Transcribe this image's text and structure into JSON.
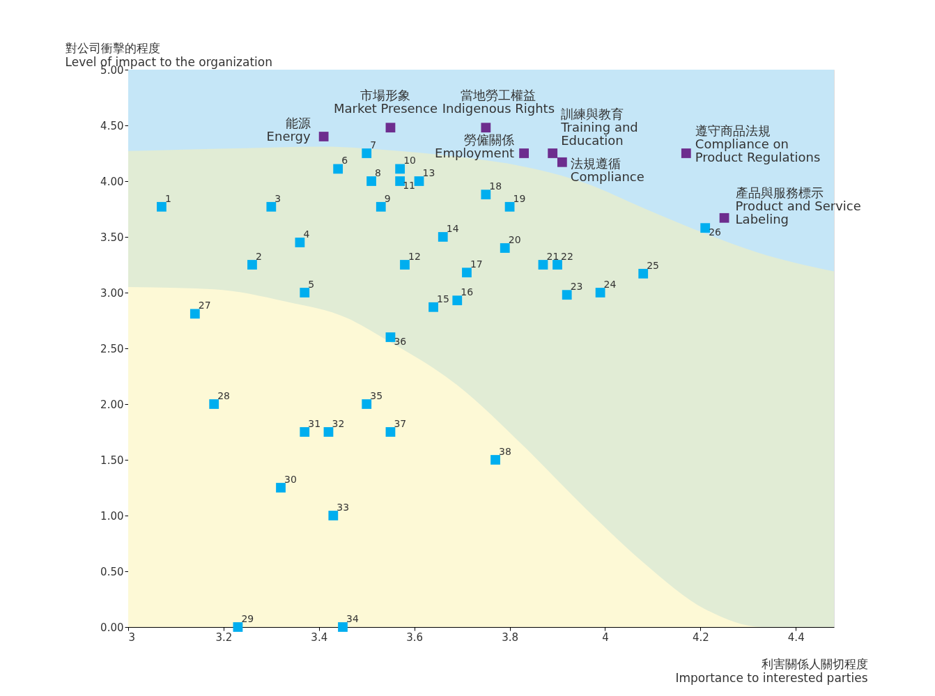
{
  "chart_data": {
    "type": "scatter",
    "xlabel": "利害關係人關切程度\nImportance to interested parties",
    "ylabel": "對公司衝擊的程度\nLevel of impact to the organization",
    "xlim": [
      3,
      4.48
    ],
    "xticks": [
      3,
      3.2,
      3.4,
      3.6,
      3.8,
      4,
      4.2,
      4.4
    ],
    "ylim": [
      0,
      5
    ],
    "yticks": [
      {
        "value": 0,
        "label": "0.00"
      },
      {
        "value": 0.5,
        "label": "0.50"
      },
      {
        "value": 1,
        "label": "1.00"
      },
      {
        "value": 1.5,
        "label": "1.50"
      },
      {
        "value": 2,
        "label": "2.00"
      },
      {
        "value": 2.5,
        "label": "2.50"
      },
      {
        "value": 3,
        "label": "3.00"
      },
      {
        "value": 3.5,
        "label": "3.50"
      },
      {
        "value": 4,
        "label": "4.00"
      },
      {
        "value": 4.5,
        "label": "4.50"
      },
      {
        "value": 5,
        "label": "5.00"
      }
    ],
    "series": [
      {
        "type": "area",
        "color": "#c5e6f7",
        "x": [
          3,
          4.48
        ],
        "values": [
          5,
          5
        ]
      },
      {
        "type": "area",
        "color": "#e1ecd5",
        "x": [
          3,
          3.19,
          3.41,
          3.54,
          3.69,
          3.83,
          3.96,
          4.08,
          4.21,
          4.32,
          4.48
        ],
        "values": [
          4.27,
          4.29,
          4.31,
          4.28,
          4.22,
          4.13,
          3.98,
          3.76,
          3.53,
          3.36,
          3.19
        ]
      },
      {
        "type": "area",
        "color": "#fdf9d6",
        "x": [
          3,
          3.18,
          3.33,
          3.46,
          3.54,
          3.69,
          3.83,
          3.96,
          4.08,
          4.21,
          4.33,
          4.48
        ],
        "values": [
          3.05,
          3.03,
          2.92,
          2.77,
          2.58,
          2.17,
          1.62,
          1.06,
          0.58,
          0.16,
          0,
          0
        ]
      },
      {
        "color": "#00aeef",
        "marker": "square",
        "x": [
          3.07,
          3.26,
          3.3,
          3.36,
          3.37,
          3.44,
          3.5,
          3.51,
          3.53,
          3.57,
          3.57,
          3.58,
          3.61,
          3.66,
          3.64,
          3.69,
          3.71,
          3.75,
          3.8,
          3.79,
          3.87,
          3.9,
          3.92,
          3.99,
          4.08,
          4.21,
          3.14,
          3.18,
          3.23,
          3.32,
          3.37,
          3.42,
          3.43,
          3.45,
          3.5,
          3.55,
          3.55,
          3.77
        ],
        "values": [
          3.77,
          3.25,
          3.77,
          3.45,
          3.0,
          4.11,
          4.25,
          4.0,
          3.77,
          4.11,
          4.0,
          3.25,
          4.0,
          3.5,
          2.87,
          2.93,
          3.18,
          3.88,
          3.77,
          3.4,
          3.25,
          3.25,
          2.98,
          3.0,
          3.17,
          3.58,
          2.81,
          2.0,
          0,
          1.25,
          1.75,
          1.75,
          1.0,
          0,
          2.0,
          2.6,
          1.75,
          1.5
        ]
      },
      {
        "color": "#6d2d8e",
        "marker": "square",
        "x": [
          3.41,
          3.55,
          3.75,
          3.83,
          3.89,
          3.91,
          4.17,
          4.25
        ],
        "values": [
          4.4,
          4.48,
          4.48,
          4.25,
          4.25,
          4.17,
          4.25,
          3.67
        ]
      }
    ],
    "annotations": [
      {
        "text": "1",
        "x": 3.07,
        "y": 3.77
      },
      {
        "text": "2",
        "x": 3.26,
        "y": 3.25
      },
      {
        "text": "3",
        "x": 3.3,
        "y": 3.77
      },
      {
        "text": "4",
        "x": 3.36,
        "y": 3.45
      },
      {
        "text": "5",
        "x": 3.37,
        "y": 3.0
      },
      {
        "text": "6",
        "x": 3.44,
        "y": 4.11
      },
      {
        "text": "7",
        "x": 3.5,
        "y": 4.25
      },
      {
        "text": "8",
        "x": 3.51,
        "y": 4.0
      },
      {
        "text": "9",
        "x": 3.53,
        "y": 3.77
      },
      {
        "text": "10",
        "x": 3.57,
        "y": 4.11
      },
      {
        "text": "11",
        "x": 3.57,
        "y": 4.0
      },
      {
        "text": "12",
        "x": 3.58,
        "y": 3.25
      },
      {
        "text": "13",
        "x": 3.61,
        "y": 4.0
      },
      {
        "text": "14",
        "x": 3.66,
        "y": 3.5
      },
      {
        "text": "15",
        "x": 3.64,
        "y": 2.87
      },
      {
        "text": "16",
        "x": 3.69,
        "y": 2.93
      },
      {
        "text": "17",
        "x": 3.71,
        "y": 3.18
      },
      {
        "text": "18",
        "x": 3.75,
        "y": 3.88
      },
      {
        "text": "19",
        "x": 3.8,
        "y": 3.77
      },
      {
        "text": "20",
        "x": 3.79,
        "y": 3.4
      },
      {
        "text": "21",
        "x": 3.87,
        "y": 3.25
      },
      {
        "text": "22",
        "x": 3.9,
        "y": 3.25
      },
      {
        "text": "23",
        "x": 3.92,
        "y": 2.98
      },
      {
        "text": "24",
        "x": 3.99,
        "y": 3.0
      },
      {
        "text": "25",
        "x": 4.08,
        "y": 3.17
      },
      {
        "text": "26",
        "x": 4.21,
        "y": 3.58
      },
      {
        "text": "27",
        "x": 3.14,
        "y": 2.81
      },
      {
        "text": "28",
        "x": 3.18,
        "y": 2.0
      },
      {
        "text": "29",
        "x": 3.23,
        "y": 0
      },
      {
        "text": "30",
        "x": 3.32,
        "y": 1.25
      },
      {
        "text": "31",
        "x": 3.37,
        "y": 1.75
      },
      {
        "text": "32",
        "x": 3.42,
        "y": 1.75
      },
      {
        "text": "33",
        "x": 3.43,
        "y": 1.0
      },
      {
        "text": "34",
        "x": 3.45,
        "y": 0
      },
      {
        "text": "35",
        "x": 3.5,
        "y": 2.0
      },
      {
        "text": "36",
        "x": 3.55,
        "y": 2.6
      },
      {
        "text": "37",
        "x": 3.55,
        "y": 1.75
      },
      {
        "text": "38",
        "x": 3.77,
        "y": 1.5
      },
      {
        "text": "能源\nEnergy",
        "x": 3.41,
        "y": 4.4
      },
      {
        "text": "市場形象\nMarket Presence",
        "x": 3.55,
        "y": 4.48
      },
      {
        "text": "當地勞工權益\nIndigenous Rights",
        "x": 3.75,
        "y": 4.48
      },
      {
        "text": "勞僱關係\nEmployment",
        "x": 3.83,
        "y": 4.25
      },
      {
        "text": "訓練與教育\nTraining and\nEducation",
        "x": 3.89,
        "y": 4.25
      },
      {
        "text": "法規遵循\nCompliance",
        "x": 3.91,
        "y": 4.17
      },
      {
        "text": "遵守商品法規\nCompliance on\nProduct Regulations",
        "x": 4.17,
        "y": 4.25
      },
      {
        "text": "產品與服務標示\nProduct and Service\nLabeling",
        "x": 4.25,
        "y": 3.67
      }
    ]
  }
}
